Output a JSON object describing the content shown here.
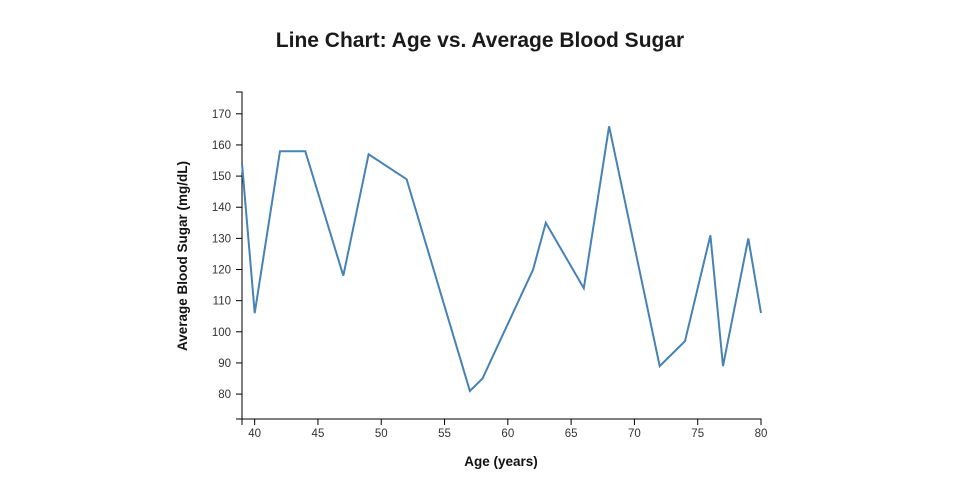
{
  "title": "Line Chart: Age vs. Average Blood Sugar",
  "chart_data": {
    "type": "line",
    "title": "Line Chart: Age vs. Average Blood Sugar",
    "xlabel": "Age (years)",
    "ylabel": "Average Blood Sugar (mg/dL)",
    "x": [
      39,
      40,
      42,
      44,
      47,
      49,
      52,
      57,
      58,
      62,
      63,
      66,
      68,
      72,
      74,
      76,
      77,
      79,
      80
    ],
    "y": [
      154,
      106,
      158,
      158,
      118,
      157,
      149,
      81,
      85,
      120,
      135,
      114,
      166,
      89,
      97,
      131,
      89,
      130,
      106
    ],
    "series_name": "Average Blood Sugar",
    "xlim": [
      39,
      80
    ],
    "ylim": [
      72,
      177
    ],
    "x_ticks": [
      40,
      45,
      50,
      55,
      60,
      65,
      70,
      75,
      80
    ],
    "y_ticks": [
      80,
      90,
      100,
      110,
      120,
      130,
      140,
      150,
      160,
      170
    ],
    "grid": false,
    "legend": false,
    "line_color": "#4682b4",
    "axis_color": "#000000",
    "tick_label_color": "#333333",
    "title_color": "#1a1a1a"
  }
}
